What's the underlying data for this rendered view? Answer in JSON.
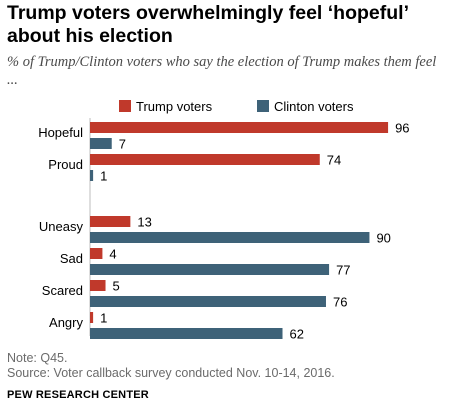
{
  "title": "Trump voters overwhelmingly feel ‘hopeful’ about his election",
  "subtitle": "% of Trump/Clinton voters who say the election of Trump makes them feel ...",
  "note": "Note: Q45.",
  "source": "Source: Voter callback survey conducted Nov. 10-14, 2016.",
  "branding": "PEW RESEARCH CENTER",
  "colors": {
    "trump": "#c0392b",
    "clinton": "#3e6278"
  },
  "chart_data": {
    "type": "bar",
    "orientation": "horizontal",
    "categories": [
      "Hopeful",
      "Proud",
      "Uneasy",
      "Sad",
      "Scared",
      "Angry"
    ],
    "series": [
      {
        "name": "Trump voters",
        "values": [
          96,
          74,
          13,
          4,
          5,
          1
        ]
      },
      {
        "name": "Clinton voters",
        "values": [
          7,
          1,
          90,
          77,
          76,
          62
        ]
      }
    ],
    "xlim": [
      0,
      100
    ],
    "legend": "top",
    "grid": false,
    "title": "Trump voters overwhelmingly feel ‘hopeful’ about his election",
    "xlabel": "",
    "ylabel": ""
  }
}
